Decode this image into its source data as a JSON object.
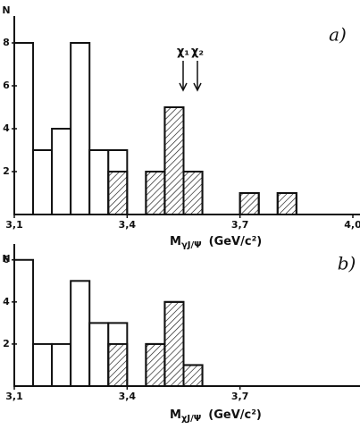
{
  "chart_data": [
    {
      "type": "histogram",
      "panel_label": "a)",
      "y_label": "N",
      "x_label": {
        "main": "M",
        "sub": "γJ/Ψ",
        "unit": "(GeV/c²)"
      },
      "annotations": [
        "χ₁",
        "χ₂"
      ],
      "bins": [
        3.1,
        3.15,
        3.2,
        3.25,
        3.3,
        3.35,
        3.4,
        3.45,
        3.5,
        3.55,
        3.6,
        3.65,
        3.7,
        3.75,
        3.8,
        3.85,
        3.9
      ],
      "series": [
        {
          "color": "#ffffff",
          "hatched": false,
          "values": [
            8,
            3,
            4,
            8,
            3,
            3,
            0,
            2,
            5,
            2,
            0,
            0,
            1,
            0,
            1,
            0
          ]
        },
        {
          "color": "#111111",
          "hatched": true,
          "values": [
            0,
            0,
            0,
            0,
            0,
            2,
            0,
            2,
            5,
            2,
            0,
            0,
            1,
            0,
            1,
            0
          ]
        }
      ],
      "xlim": [
        3.1,
        4.0
      ],
      "xticks": [
        {
          "value": 3.1,
          "label": "3,1"
        },
        {
          "value": 3.4,
          "label": "3,4"
        },
        {
          "value": 3.7,
          "label": "3,7"
        },
        {
          "value": 4.0,
          "label": "4,0"
        }
      ],
      "ylim": [
        0,
        9
      ],
      "yticks": [
        2,
        4,
        6,
        8
      ]
    },
    {
      "type": "histogram",
      "panel_label": "b)",
      "y_label": "N",
      "x_label": {
        "main": "M",
        "sub": "χJ/Ψ",
        "unit": "(GeV/c²)"
      },
      "bins": [
        3.1,
        3.15,
        3.2,
        3.25,
        3.3,
        3.35,
        3.4,
        3.45,
        3.5,
        3.55,
        3.6
      ],
      "series": [
        {
          "color": "#ffffff",
          "hatched": false,
          "values": [
            6,
            2,
            2,
            5,
            3,
            3,
            0,
            2,
            4,
            1
          ]
        },
        {
          "color": "#111111",
          "hatched": true,
          "values": [
            0,
            0,
            0,
            0,
            0,
            2,
            0,
            2,
            4,
            1
          ]
        }
      ],
      "xlim": [
        3.1,
        4.0
      ],
      "xticks": [
        {
          "value": 3.1,
          "label": "3,1"
        },
        {
          "value": 3.4,
          "label": "3,4"
        },
        {
          "value": 3.7,
          "label": "3,7"
        }
      ],
      "ylim": [
        0,
        6.5
      ],
      "yticks": [
        2,
        4,
        6
      ]
    }
  ]
}
